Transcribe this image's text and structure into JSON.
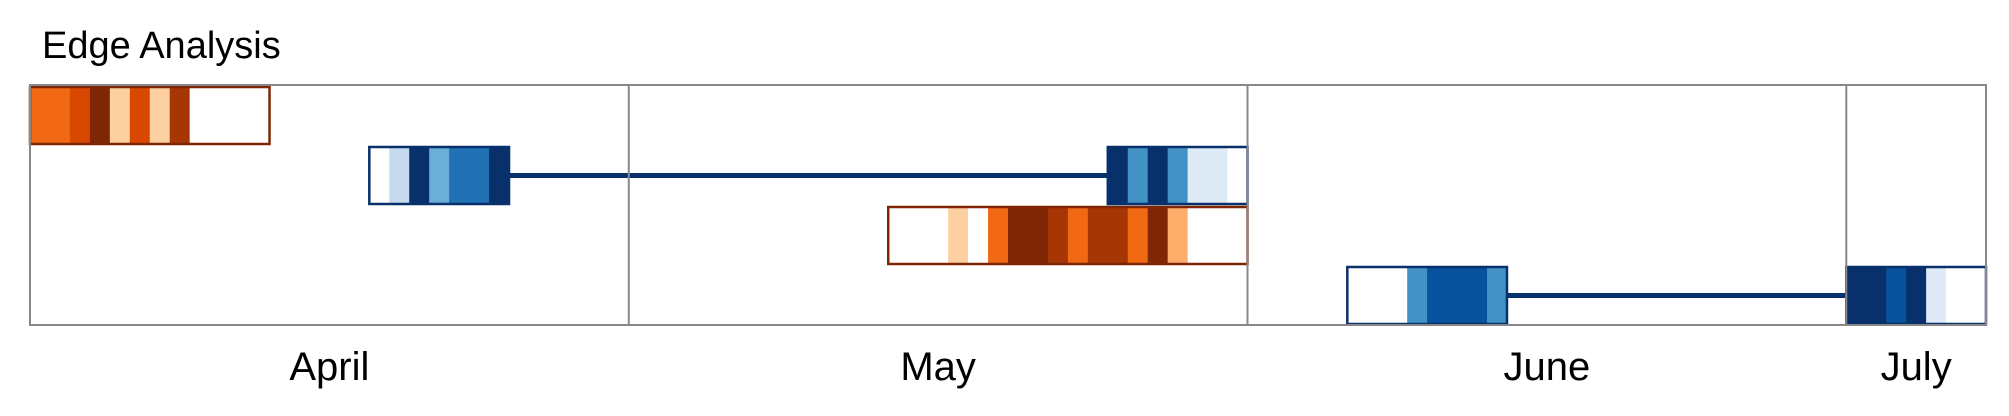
{
  "chart_data": {
    "type": "timeline",
    "title": "Edge Analysis",
    "months": [
      "April",
      "May",
      "June",
      "July"
    ],
    "palettes": {
      "blue": [
        "#ffffff",
        "#deebf7",
        "#c6dbef",
        "#9ecae1",
        "#6baed6",
        "#4292c6",
        "#2171b5",
        "#08519c",
        "#08306b"
      ],
      "orange": [
        "#ffffff",
        "#fdd0a2",
        "#fdae6b",
        "#f16913",
        "#d94801",
        "#a63603",
        "#7f2704"
      ]
    },
    "tracks": [
      {
        "color": "orange",
        "segments": [
          {
            "start": "2023-04-01",
            "days": 12,
            "cells": [
              3,
              3,
              4,
              6,
              1,
              4,
              1,
              5,
              0,
              0,
              0,
              0
            ]
          }
        ]
      },
      {
        "color": "blue",
        "segments": [
          {
            "start": "2023-04-18",
            "days": 7,
            "cells": [
              0,
              2,
              8,
              4,
              6,
              6,
              8
            ]
          },
          {
            "start": "2023-05-25",
            "days": 7,
            "cells": [
              8,
              5,
              8,
              5,
              1,
              1,
              0
            ]
          }
        ],
        "connector": true
      },
      {
        "color": "orange",
        "segments": [
          {
            "start": "2023-05-14",
            "days": 18,
            "cells": [
              0,
              0,
              0,
              1,
              0,
              3,
              6,
              6,
              5,
              3,
              5,
              5,
              3,
              6,
              2,
              0,
              0,
              0
            ]
          }
        ]
      },
      {
        "color": "blue",
        "segments": [
          {
            "start": "2023-06-06",
            "days": 8,
            "cells": [
              0,
              0,
              0,
              5,
              7,
              7,
              7,
              5
            ]
          },
          {
            "start": "2023-07-01",
            "days": 7,
            "cells": [
              8,
              8,
              7,
              8,
              1,
              0,
              0
            ]
          }
        ],
        "connector": true
      }
    ],
    "xrange": [
      "2023-04-01",
      "2023-07-08"
    ],
    "grid": "month boundaries",
    "legend": "none"
  }
}
